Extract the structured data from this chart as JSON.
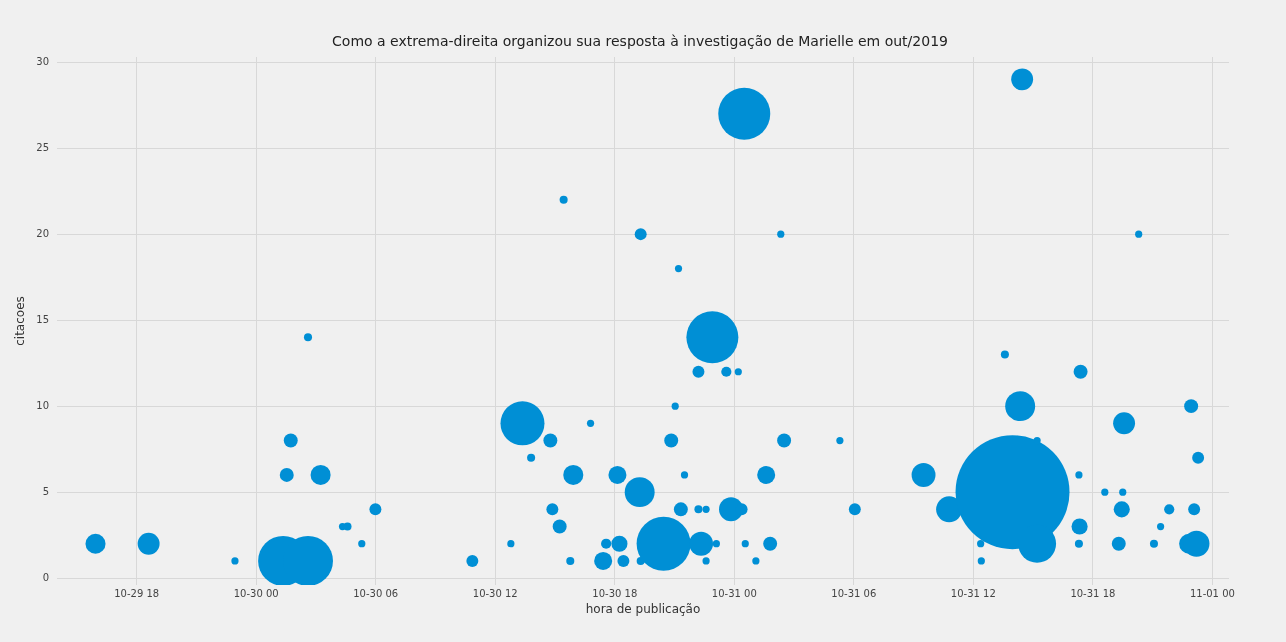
{
  "chart_data": {
    "type": "bubble",
    "title": "Como a extrema-direita organizou sua resposta à investigação de Marielle em out/2019",
    "xlabel": "hora de publicação",
    "ylabel": "citacoes",
    "x": [
      "2019-10-29T15:56",
      "2019-10-29T18:36",
      "2019-10-29T22:56",
      "2019-10-30T01:21",
      "2019-10-30T02:36",
      "2019-10-30T01:32",
      "2019-10-30T01:44",
      "2019-10-30T03:14",
      "2019-10-30T02:36",
      "2019-10-30T04:20",
      "2019-10-30T04:35",
      "2019-10-30T05:18",
      "2019-10-30T05:59",
      "2019-10-30T10:51",
      "2019-10-30T12:47",
      "2019-10-30T13:22",
      "2019-10-30T13:48",
      "2019-10-30T14:46",
      "2019-10-30T14:52",
      "2019-10-30T15:14",
      "2019-10-30T15:26",
      "2019-10-30T15:46",
      "2019-10-30T15:55",
      "2019-10-30T16:47",
      "2019-10-30T17:34",
      "2019-10-30T17:25",
      "2019-10-30T18:14",
      "2019-10-30T18:08",
      "2019-10-30T18:26",
      "2019-10-30T19:18",
      "2019-10-30T19:18",
      "2019-10-30T19:15",
      "2019-10-30T20:27",
      "2019-10-30T20:50",
      "2019-10-30T21:19",
      "2019-10-30T22:20",
      "2019-10-30T21:02",
      "2019-10-30T21:12",
      "2019-10-30T21:30",
      "2019-10-30T22:12",
      "2019-10-30T22:35",
      "2019-10-30T22:12",
      "2019-10-30T22:54",
      "2019-10-30T23:36",
      "2019-10-31T00:12",
      "2019-10-30T23:06",
      "2019-10-30T22:35",
      "2019-10-30T23:50",
      "2019-10-31T00:22",
      "2019-10-31T00:30",
      "2019-10-31T00:33",
      "2019-10-31T01:05",
      "2019-10-31T01:36",
      "2019-10-31T01:48",
      "2019-10-31T02:20",
      "2019-10-31T02:30",
      "2019-10-31T05:18",
      "2019-10-31T06:03",
      "2019-10-31T09:30",
      "2019-10-31T10:47",
      "2019-10-31T12:22",
      "2019-10-31T12:24",
      "2019-10-31T13:35",
      "2019-10-31T13:58",
      "2019-10-31T14:21",
      "2019-10-31T15:12",
      "2019-10-31T15:12",
      "2019-10-31T14:27",
      "2019-10-31T17:23",
      "2019-10-31T17:20",
      "2019-10-31T17:18",
      "2019-10-31T17:18",
      "2019-10-31T18:36",
      "2019-10-31T19:18",
      "2019-10-31T19:27",
      "2019-10-31T19:30",
      "2019-10-31T19:34",
      "2019-10-31T21:04",
      "2019-10-31T21:24",
      "2019-10-31T21:50",
      "2019-10-31T20:18",
      "2019-10-31T22:50",
      "2019-10-31T23:12",
      "2019-10-31T23:05",
      "2019-10-31T22:56",
      "2019-10-31T23:17"
    ],
    "values": [
      2,
      2,
      1,
      1,
      1,
      6,
      8,
      6,
      14,
      3,
      3,
      2,
      4,
      1,
      2,
      9,
      7,
      8,
      4,
      3,
      22,
      1,
      6,
      9,
      2,
      1,
      2,
      6,
      1,
      20,
      1,
      5,
      2,
      8,
      4,
      2,
      10,
      18,
      6,
      4,
      4,
      12,
      14,
      12,
      12,
      2,
      1,
      4,
      4,
      27,
      2,
      1,
      6,
      2,
      20,
      8,
      8,
      4,
      6,
      4,
      2,
      1,
      13,
      5,
      10,
      2,
      8,
      29,
      12,
      3,
      2,
      6,
      5,
      2,
      4,
      5,
      9,
      2,
      3,
      4,
      20,
      2,
      2,
      4,
      10,
      7
    ],
    "sizes": [
      0.031,
      0.037,
      0.004,
      0.192,
      0.192,
      0.015,
      0.015,
      0.031,
      0.005,
      0.004,
      0.005,
      0.004,
      0.011,
      0.011,
      0.004,
      0.149,
      0.005,
      0.015,
      0.011,
      0.015,
      0.005,
      0.005,
      0.031,
      0.004,
      0.008,
      0.025,
      0.02,
      0.025,
      0.011,
      0.011,
      0.005,
      0.069,
      0.224,
      0.015,
      0.015,
      0.044,
      0.004,
      0.004,
      0.004,
      0.005,
      0.004,
      0.011,
      0.208,
      0.008,
      0.004,
      0.004,
      0.004,
      0.044,
      0.011,
      0.208,
      0.004,
      0.004,
      0.025,
      0.015,
      0.004,
      0.015,
      0.004,
      0.011,
      0.044,
      0.052,
      0.004,
      0.004,
      0.005,
      1,
      0.069,
      0.111,
      0.004,
      0.037,
      0.015,
      0.02,
      0.005,
      0.004,
      0.004,
      0.015,
      0.02,
      0.004,
      0.037,
      0.005,
      0.004,
      0.008,
      0.004,
      0.031,
      0.052,
      0.011,
      0.015,
      0.011
    ],
    "color": "#008fd5",
    "xlim": [
      "2019-10-29T14:00",
      "2019-11-01T00:50"
    ],
    "xticks": [
      {
        "value": "2019-10-29T18:00",
        "label": "10-29 18"
      },
      {
        "value": "2019-10-30T00:00",
        "label": "10-30 00"
      },
      {
        "value": "2019-10-30T06:00",
        "label": "10-30 06"
      },
      {
        "value": "2019-10-30T12:00",
        "label": "10-30 12"
      },
      {
        "value": "2019-10-30T18:00",
        "label": "10-30 18"
      },
      {
        "value": "2019-10-31T00:00",
        "label": "10-31 00"
      },
      {
        "value": "2019-10-31T06:00",
        "label": "10-31 06"
      },
      {
        "value": "2019-10-31T12:00",
        "label": "10-31 12"
      },
      {
        "value": "2019-10-31T18:00",
        "label": "10-31 18"
      },
      {
        "value": "2019-11-01T00:00",
        "label": "11-01 00"
      }
    ],
    "ylim": [
      -0.4,
      30.3
    ],
    "yticks": [
      0,
      5,
      10,
      15,
      20,
      25,
      30
    ],
    "grid": true,
    "legend": false
  }
}
